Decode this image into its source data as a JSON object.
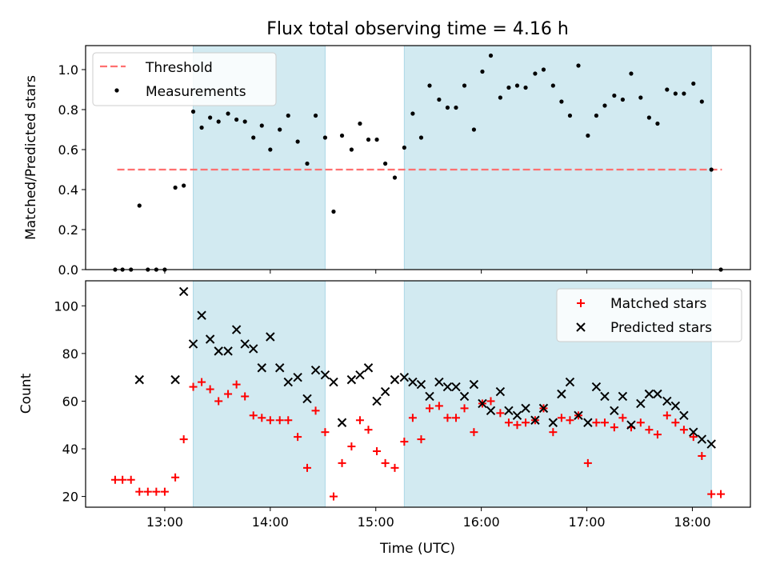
{
  "chart_data": {
    "title": "Flux total observing time = 4.16 h",
    "x_unit": "hours (UTC)",
    "xlim": [
      12.25,
      18.55
    ],
    "xlabel": "Time (UTC)",
    "x_ticks": [
      {
        "value": 13,
        "label": "13:00"
      },
      {
        "value": 14,
        "label": "14:00"
      },
      {
        "value": 15,
        "label": "15:00"
      },
      {
        "value": 16,
        "label": "16:00"
      },
      {
        "value": 17,
        "label": "17:00"
      },
      {
        "value": 18,
        "label": "18:00"
      }
    ],
    "shaded_intervals": [
      [
        13.27,
        14.52
      ],
      [
        15.27,
        18.18
      ]
    ],
    "shade_color": "#add8e6",
    "panels": [
      {
        "type": "scatter",
        "ylabel": "Matched/Predicted stars",
        "ylim": [
          0,
          1.12
        ],
        "y_ticks": [
          "0.0",
          "0.2",
          "0.4",
          "0.6",
          "0.8",
          "1.0"
        ],
        "y_tick_values": [
          0,
          0.2,
          0.4,
          0.6,
          0.8,
          1.0
        ],
        "legend": {
          "position": "upper-left",
          "entries": [
            "Threshold",
            "Measurements"
          ]
        },
        "threshold": {
          "name": "Threshold",
          "y": 0.5,
          "x": [
            12.55,
            18.28
          ],
          "color": "#ff7070",
          "style": "dashed"
        },
        "series": [
          {
            "name": "Measurements",
            "marker": "dot",
            "color": "#000000",
            "x": [
              12.53,
              12.6,
              12.68,
              12.76,
              12.84,
              12.92,
              13.0,
              13.1,
              13.18,
              13.27,
              13.35,
              13.43,
              13.51,
              13.6,
              13.68,
              13.76,
              13.84,
              13.92,
              14.0,
              14.09,
              14.17,
              14.26,
              14.35,
              14.43,
              14.52,
              14.6,
              14.68,
              14.77,
              14.85,
              14.93,
              15.01,
              15.09,
              15.18,
              15.27,
              15.35,
              15.43,
              15.51,
              15.6,
              15.68,
              15.76,
              15.84,
              15.93,
              16.01,
              16.09,
              16.18,
              16.26,
              16.34,
              16.42,
              16.51,
              16.59,
              16.68,
              16.76,
              16.84,
              16.92,
              17.01,
              17.09,
              17.17,
              17.26,
              17.34,
              17.42,
              17.51,
              17.59,
              17.67,
              17.76,
              17.84,
              17.92,
              18.01,
              18.09,
              18.18,
              18.27
            ],
            "y": [
              0.0,
              0.0,
              0.0,
              0.32,
              0.0,
              0.0,
              0.0,
              0.41,
              0.42,
              0.79,
              0.71,
              0.76,
              0.74,
              0.78,
              0.75,
              0.74,
              0.66,
              0.72,
              0.6,
              0.7,
              0.77,
              0.64,
              0.53,
              0.77,
              0.66,
              0.29,
              0.67,
              0.6,
              0.73,
              0.65,
              0.65,
              0.53,
              0.46,
              0.61,
              0.78,
              0.66,
              0.92,
              0.85,
              0.81,
              0.81,
              0.92,
              0.7,
              0.99,
              1.07,
              0.86,
              0.91,
              0.92,
              0.91,
              0.98,
              1.0,
              0.92,
              0.84,
              0.77,
              1.02,
              0.67,
              0.77,
              0.82,
              0.87,
              0.85,
              0.98,
              0.86,
              0.76,
              0.73,
              0.9,
              0.88,
              0.88,
              0.93,
              0.84,
              0.5,
              0.0
            ]
          }
        ]
      },
      {
        "type": "scatter",
        "ylabel": "Count",
        "ylim": [
          15.5,
          110.5
        ],
        "y_ticks": [
          "20",
          "40",
          "60",
          "80",
          "100"
        ],
        "y_tick_values": [
          20,
          40,
          60,
          80,
          100
        ],
        "legend": {
          "position": "upper-right",
          "entries": [
            "Matched stars",
            "Predicted stars"
          ]
        },
        "series": [
          {
            "name": "Matched stars",
            "marker": "plus",
            "color": "#ff0000",
            "x": [
              12.53,
              12.6,
              12.68,
              12.76,
              12.84,
              12.92,
              13.0,
              13.1,
              13.18,
              13.27,
              13.35,
              13.43,
              13.51,
              13.6,
              13.68,
              13.76,
              13.84,
              13.92,
              14.0,
              14.09,
              14.17,
              14.26,
              14.35,
              14.43,
              14.52,
              14.6,
              14.68,
              14.77,
              14.85,
              14.93,
              15.01,
              15.09,
              15.18,
              15.27,
              15.35,
              15.43,
              15.51,
              15.6,
              15.68,
              15.76,
              15.84,
              15.93,
              16.01,
              16.09,
              16.18,
              16.26,
              16.34,
              16.42,
              16.51,
              16.59,
              16.68,
              16.76,
              16.84,
              16.92,
              17.01,
              17.09,
              17.17,
              17.26,
              17.34,
              17.42,
              17.51,
              17.59,
              17.67,
              17.76,
              17.84,
              17.92,
              18.01,
              18.09,
              18.18,
              18.27
            ],
            "y": [
              27,
              27,
              27,
              22,
              22,
              22,
              22,
              28,
              44,
              66,
              68,
              65,
              60,
              63,
              67,
              62,
              54,
              53,
              52,
              52,
              52,
              45,
              32,
              56,
              47,
              20,
              34,
              41,
              52,
              48,
              39,
              34,
              32,
              43,
              53,
              44,
              57,
              58,
              53,
              53,
              57,
              47,
              59,
              60,
              55,
              51,
              50,
              51,
              52,
              57,
              47,
              53,
              52,
              54,
              34,
              51,
              51,
              49,
              53,
              49,
              51,
              48,
              46,
              54,
              51,
              48,
              45,
              37,
              21,
              21
            ]
          },
          {
            "name": "Predicted stars",
            "marker": "x",
            "color": "#000000",
            "x": [
              12.76,
              13.1,
              13.18,
              13.27,
              13.35,
              13.43,
              13.51,
              13.6,
              13.68,
              13.76,
              13.84,
              13.92,
              14.0,
              14.09,
              14.17,
              14.26,
              14.35,
              14.43,
              14.52,
              14.6,
              14.68,
              14.77,
              14.85,
              14.93,
              15.01,
              15.09,
              15.18,
              15.27,
              15.35,
              15.43,
              15.51,
              15.6,
              15.68,
              15.76,
              15.84,
              15.93,
              16.01,
              16.09,
              16.18,
              16.26,
              16.34,
              16.42,
              16.51,
              16.59,
              16.68,
              16.76,
              16.84,
              16.92,
              17.01,
              17.09,
              17.17,
              17.26,
              17.34,
              17.42,
              17.51,
              17.59,
              17.67,
              17.76,
              17.84,
              17.92,
              18.01,
              18.09,
              18.18
            ],
            "y": [
              69,
              69,
              106,
              84,
              96,
              86,
              81,
              81,
              90,
              84,
              82,
              74,
              87,
              74,
              68,
              70,
              61,
              73,
              71,
              68,
              51,
              69,
              71,
              74,
              60,
              64,
              69,
              70,
              68,
              67,
              62,
              68,
              66,
              66,
              62,
              67,
              59,
              56,
              64,
              56,
              54,
              57,
              52,
              57,
              51,
              63,
              68,
              54,
              51,
              66,
              62,
              56,
              62,
              50,
              59,
              63,
              63,
              60,
              58,
              54,
              47,
              44,
              42
            ]
          }
        ]
      }
    ]
  }
}
